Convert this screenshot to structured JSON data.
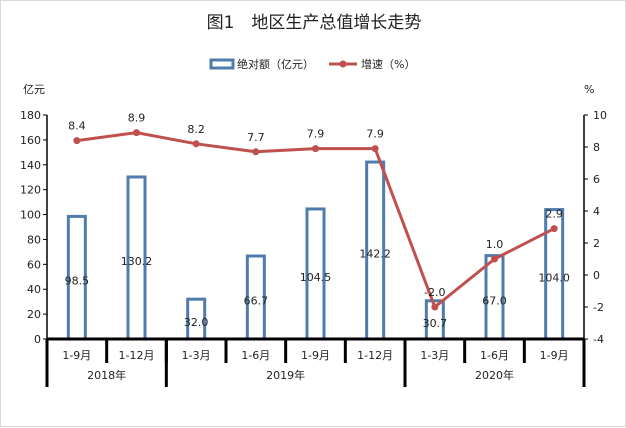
{
  "chart_data": {
    "type": "bar+line",
    "title": "图1　地区生产总值增长走势",
    "categories": [
      "1-9月",
      "1-12月",
      "1-3月",
      "1-6月",
      "1-9月",
      "1-12月",
      "1-3月",
      "1-6月",
      "1-9月"
    ],
    "groups": [
      {
        "label": "2018年",
        "count": 2
      },
      {
        "label": "2019年",
        "count": 4
      },
      {
        "label": "2020年",
        "count": 3
      }
    ],
    "series": [
      {
        "name": "绝对额（亿元）",
        "type": "bar",
        "axis": "left",
        "color": "#4f7cad",
        "values": [
          98.5,
          130.2,
          32.0,
          66.7,
          104.5,
          142.2,
          30.7,
          67.0,
          104.0
        ],
        "labels": [
          "98.5",
          "130.2",
          "32.0",
          "66.7",
          "104.5",
          "142.2",
          "30.7",
          "67.0",
          "104.0"
        ]
      },
      {
        "name": "增速（%）",
        "type": "line",
        "axis": "right",
        "color": "#c0504d",
        "values": [
          8.4,
          8.9,
          8.2,
          7.7,
          7.9,
          7.9,
          -2.0,
          1.0,
          2.9
        ],
        "labels": [
          "8.4",
          "8.9",
          "8.2",
          "7.7",
          "7.9",
          "7.9",
          "-2.0",
          "1.0",
          "2.9"
        ]
      }
    ],
    "ylabel": "亿元",
    "ylim": [
      0,
      180
    ],
    "yticks": [
      0,
      20,
      40,
      60,
      80,
      100,
      120,
      140,
      160,
      180
    ],
    "y2label": "%",
    "y2lim": [
      -4,
      10
    ],
    "y2ticks": [
      -4,
      -2,
      0,
      2,
      4,
      6,
      8,
      10
    ],
    "grid": false,
    "legend": "top-center"
  }
}
